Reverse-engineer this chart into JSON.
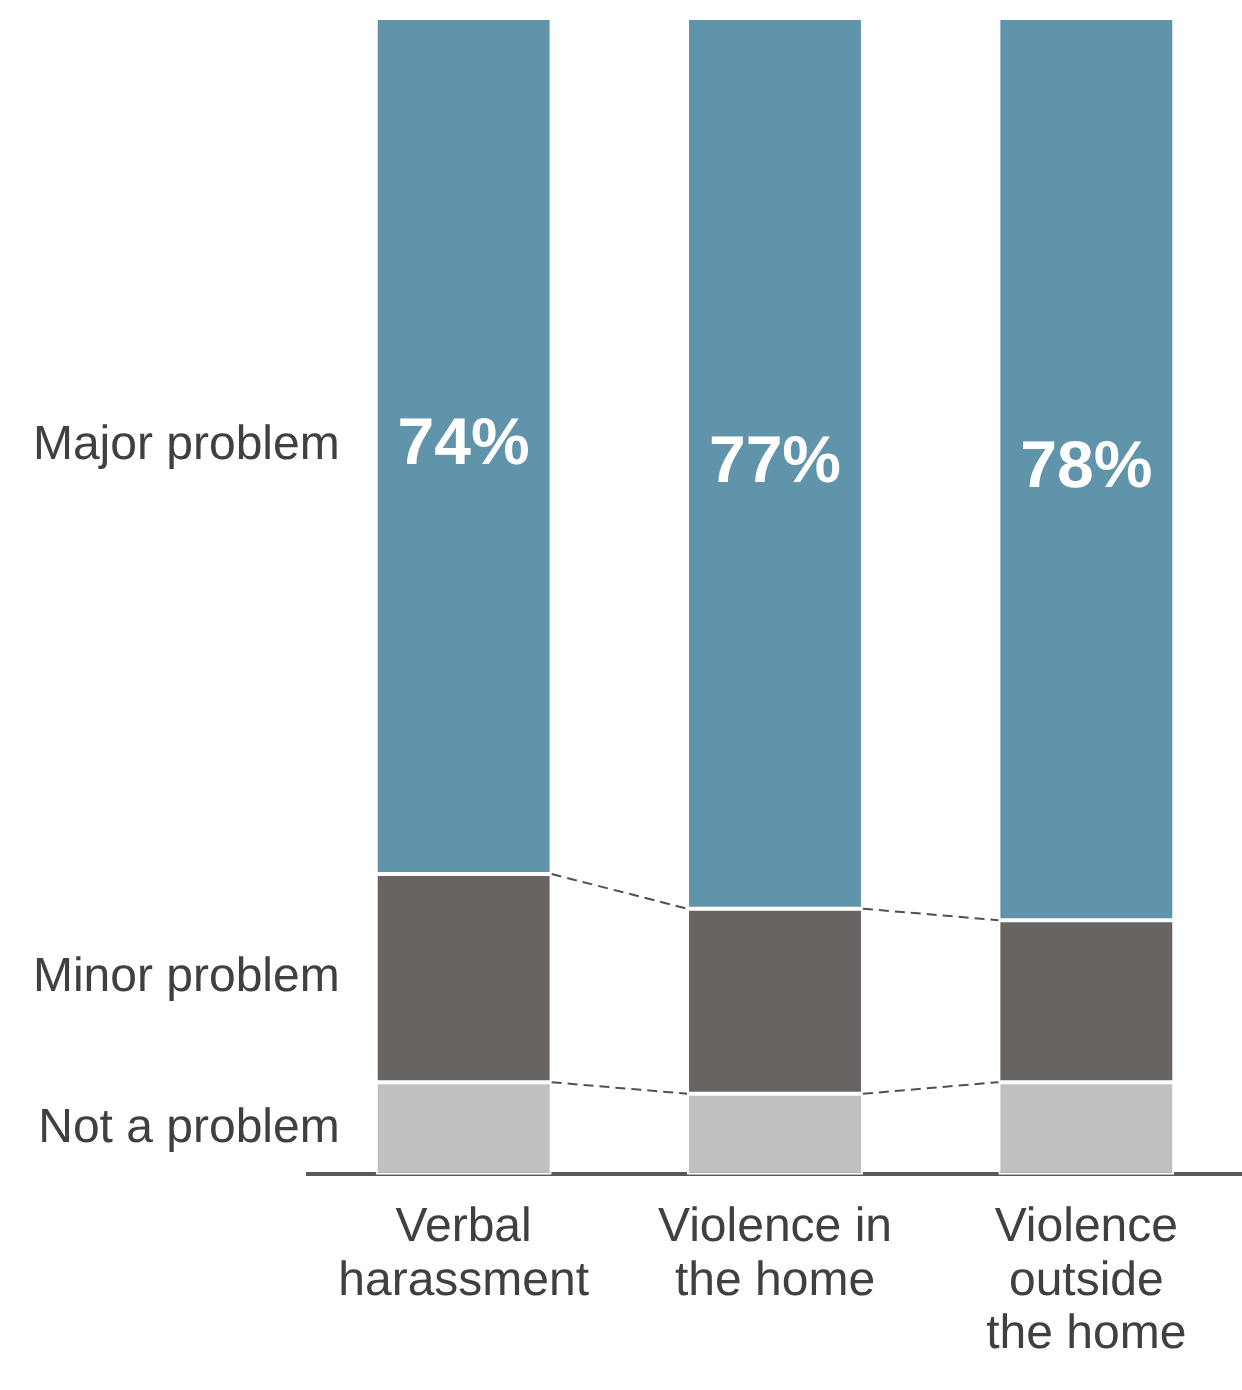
{
  "chart_data": {
    "type": "bar",
    "stacked": true,
    "categories": [
      "Verbal harassment",
      "Violence in the home",
      "Violence outside the home"
    ],
    "series": [
      {
        "name": "Not a problem",
        "color": "#c0c0c0",
        "values": [
          8,
          7,
          8
        ]
      },
      {
        "name": "Minor problem",
        "color": "#686462",
        "values": [
          18,
          16,
          14
        ]
      },
      {
        "name": "Major problem",
        "color": "#5f94aa",
        "values": [
          74,
          77,
          78
        ],
        "value_labels": [
          "74%",
          "77%",
          "78%"
        ]
      }
    ],
    "ylim": [
      0,
      100
    ],
    "tick_labels": "x",
    "grid": false
  }
}
